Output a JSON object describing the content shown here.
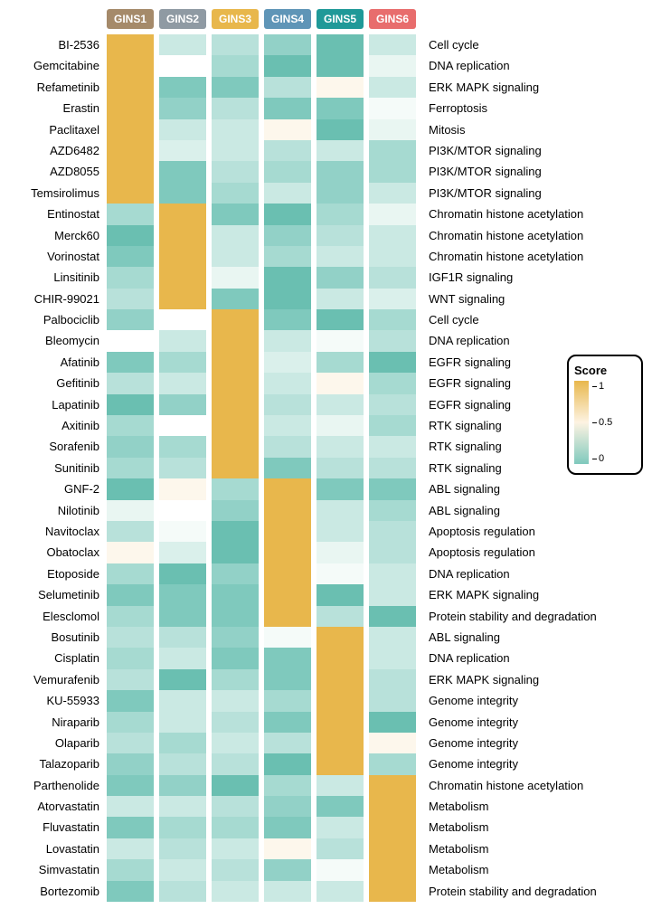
{
  "columns": [
    {
      "label": "GINS1",
      "color": "#a58a6a"
    },
    {
      "label": "GINS2",
      "color": "#8f9aa3"
    },
    {
      "label": "GINS3",
      "color": "#e8b74c"
    },
    {
      "label": "GINS4",
      "color": "#5f95b7"
    },
    {
      "label": "GINS5",
      "color": "#1f9998"
    },
    {
      "label": "GINS6",
      "color": "#e86d6d"
    }
  ],
  "legend": {
    "title": "Score",
    "ticks": [
      "1",
      "0.5",
      "0"
    ],
    "gradient_top": "#e8b74c",
    "gradient_mid": "#fdf3e2",
    "gradient_bot": "#7fc9bd"
  },
  "color_scale": {
    "0.00": "#59b8a9",
    "0.05": "#6abfb1",
    "0.10": "#7fc9bd",
    "0.15": "#92d1c7",
    "0.20": "#a6dad1",
    "0.25": "#b8e1da",
    "0.30": "#cae9e3",
    "0.35": "#daf0eb",
    "0.40": "#e9f6f2",
    "0.45": "#f5fbf9",
    "0.50": "#ffffff",
    "0.55": "#fdf7ec",
    "0.60": "#fbf0dc",
    "0.70": "#f7e3bf",
    "0.80": "#f1d398",
    "0.90": "#ecc470",
    "1.00": "#e8b74c"
  },
  "rows": [
    {
      "drug": "BI-2536",
      "pathway": "Cell cycle",
      "v": [
        1.0,
        0.3,
        0.25,
        0.15,
        0.05,
        0.3
      ]
    },
    {
      "drug": "Gemcitabine",
      "pathway": "DNA replication",
      "v": [
        1.0,
        0.5,
        0.2,
        0.05,
        0.05,
        0.4
      ]
    },
    {
      "drug": "Refametinib",
      "pathway": "ERK MAPK signaling",
      "v": [
        1.0,
        0.1,
        0.1,
        0.25,
        0.55,
        0.3
      ]
    },
    {
      "drug": "Erastin",
      "pathway": "Ferroptosis",
      "v": [
        1.0,
        0.15,
        0.25,
        0.1,
        0.1,
        0.45
      ]
    },
    {
      "drug": "Paclitaxel",
      "pathway": "Mitosis",
      "v": [
        1.0,
        0.3,
        0.3,
        0.55,
        0.05,
        0.4
      ]
    },
    {
      "drug": "AZD6482",
      "pathway": "PI3K/MTOR signaling",
      "v": [
        1.0,
        0.35,
        0.3,
        0.25,
        0.3,
        0.2
      ]
    },
    {
      "drug": "AZD8055",
      "pathway": "PI3K/MTOR signaling",
      "v": [
        1.0,
        0.1,
        0.25,
        0.2,
        0.15,
        0.2
      ]
    },
    {
      "drug": "Temsirolimus",
      "pathway": "PI3K/MTOR signaling",
      "v": [
        1.0,
        0.1,
        0.2,
        0.3,
        0.15,
        0.3
      ]
    },
    {
      "drug": "Entinostat",
      "pathway": "Chromatin histone acetylation",
      "v": [
        0.2,
        1.0,
        0.1,
        0.05,
        0.2,
        0.4
      ]
    },
    {
      "drug": "Merck60",
      "pathway": "Chromatin histone acetylation",
      "v": [
        0.05,
        1.0,
        0.3,
        0.15,
        0.25,
        0.3
      ]
    },
    {
      "drug": "Vorinostat",
      "pathway": "Chromatin histone acetylation",
      "v": [
        0.1,
        1.0,
        0.3,
        0.2,
        0.3,
        0.3
      ]
    },
    {
      "drug": "Linsitinib",
      "pathway": "IGF1R signaling",
      "v": [
        0.2,
        1.0,
        0.4,
        0.05,
        0.15,
        0.25
      ]
    },
    {
      "drug": "CHIR-99021",
      "pathway": "WNT signaling",
      "v": [
        0.25,
        1.0,
        0.1,
        0.05,
        0.3,
        0.35
      ]
    },
    {
      "drug": "Palbociclib",
      "pathway": "Cell cycle",
      "v": [
        0.15,
        0.5,
        1.0,
        0.1,
        0.05,
        0.2
      ]
    },
    {
      "drug": "Bleomycin",
      "pathway": "DNA replication",
      "v": [
        0.5,
        0.3,
        1.0,
        0.3,
        0.45,
        0.25
      ]
    },
    {
      "drug": "Afatinib",
      "pathway": "EGFR signaling",
      "v": [
        0.1,
        0.2,
        1.0,
        0.35,
        0.2,
        0.05
      ]
    },
    {
      "drug": "Gefitinib",
      "pathway": "EGFR signaling",
      "v": [
        0.25,
        0.3,
        1.0,
        0.3,
        0.55,
        0.2
      ]
    },
    {
      "drug": "Lapatinib",
      "pathway": "EGFR signaling",
      "v": [
        0.05,
        0.15,
        1.0,
        0.25,
        0.3,
        0.25
      ]
    },
    {
      "drug": "Axitinib",
      "pathway": "RTK signaling",
      "v": [
        0.2,
        0.5,
        1.0,
        0.3,
        0.4,
        0.2
      ]
    },
    {
      "drug": "Sorafenib",
      "pathway": "RTK signaling",
      "v": [
        0.15,
        0.2,
        1.0,
        0.25,
        0.3,
        0.3
      ]
    },
    {
      "drug": "Sunitinib",
      "pathway": "RTK signaling",
      "v": [
        0.2,
        0.25,
        1.0,
        0.1,
        0.25,
        0.25
      ]
    },
    {
      "drug": "GNF-2",
      "pathway": "ABL signaling",
      "v": [
        0.05,
        0.55,
        0.2,
        1.0,
        0.1,
        0.1
      ]
    },
    {
      "drug": "Nilotinib",
      "pathway": "ABL signaling",
      "v": [
        0.4,
        0.5,
        0.15,
        1.0,
        0.3,
        0.2
      ]
    },
    {
      "drug": "Navitoclax",
      "pathway": "Apoptosis regulation",
      "v": [
        0.25,
        0.45,
        0.05,
        1.0,
        0.3,
        0.25
      ]
    },
    {
      "drug": "Obatoclax",
      "pathway": "Apoptosis regulation",
      "v": [
        0.55,
        0.35,
        0.05,
        1.0,
        0.4,
        0.25
      ]
    },
    {
      "drug": "Etoposide",
      "pathway": "DNA replication",
      "v": [
        0.2,
        0.05,
        0.15,
        1.0,
        0.45,
        0.3
      ]
    },
    {
      "drug": "Selumetinib",
      "pathway": "ERK MAPK signaling",
      "v": [
        0.1,
        0.1,
        0.1,
        1.0,
        0.05,
        0.3
      ]
    },
    {
      "drug": "Elesclomol",
      "pathway": "Protein stability and degradation",
      "v": [
        0.2,
        0.1,
        0.1,
        1.0,
        0.25,
        0.05
      ]
    },
    {
      "drug": "Bosutinib",
      "pathway": "ABL signaling",
      "v": [
        0.25,
        0.25,
        0.15,
        0.45,
        1.0,
        0.3
      ]
    },
    {
      "drug": "Cisplatin",
      "pathway": "DNA replication",
      "v": [
        0.2,
        0.3,
        0.1,
        0.1,
        1.0,
        0.3
      ]
    },
    {
      "drug": "Vemurafenib",
      "pathway": "ERK MAPK signaling",
      "v": [
        0.25,
        0.05,
        0.2,
        0.1,
        1.0,
        0.25
      ]
    },
    {
      "drug": "KU-55933",
      "pathway": "Genome integrity",
      "v": [
        0.1,
        0.3,
        0.3,
        0.2,
        1.0,
        0.25
      ]
    },
    {
      "drug": "Niraparib",
      "pathway": "Genome integrity",
      "v": [
        0.2,
        0.3,
        0.25,
        0.1,
        1.0,
        0.05
      ]
    },
    {
      "drug": "Olaparib",
      "pathway": "Genome integrity",
      "v": [
        0.25,
        0.2,
        0.3,
        0.25,
        1.0,
        0.55
      ]
    },
    {
      "drug": "Talazoparib",
      "pathway": "Genome integrity",
      "v": [
        0.15,
        0.25,
        0.25,
        0.05,
        1.0,
        0.2
      ]
    },
    {
      "drug": "Parthenolide",
      "pathway": "Chromatin histone acetylation",
      "v": [
        0.1,
        0.15,
        0.05,
        0.2,
        0.3,
        1.0
      ]
    },
    {
      "drug": "Atorvastatin",
      "pathway": "Metabolism",
      "v": [
        0.3,
        0.3,
        0.25,
        0.15,
        0.1,
        1.0
      ]
    },
    {
      "drug": "Fluvastatin",
      "pathway": "Metabolism",
      "v": [
        0.1,
        0.2,
        0.2,
        0.1,
        0.3,
        1.0
      ]
    },
    {
      "drug": "Lovastatin",
      "pathway": "Metabolism",
      "v": [
        0.3,
        0.25,
        0.3,
        0.55,
        0.25,
        1.0
      ]
    },
    {
      "drug": "Simvastatin",
      "pathway": "Metabolism",
      "v": [
        0.2,
        0.3,
        0.25,
        0.15,
        0.45,
        1.0
      ]
    },
    {
      "drug": "Bortezomib",
      "pathway": "Protein stability and degradation",
      "v": [
        0.1,
        0.25,
        0.3,
        0.3,
        0.3,
        1.0
      ]
    }
  ]
}
